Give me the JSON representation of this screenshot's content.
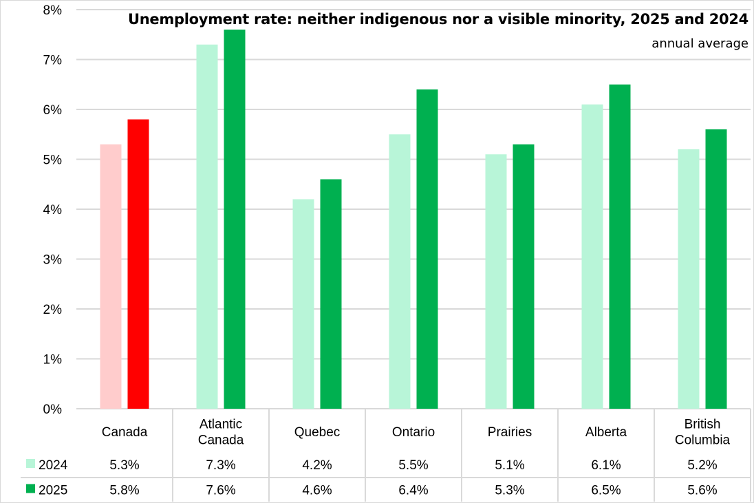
{
  "chart_data": {
    "type": "bar",
    "title": "Unemployment rate: neither indigenous nor a visible minority, 2025 and 2024",
    "subtitle": "annual average",
    "categories": [
      [
        "Canada"
      ],
      [
        "Atlantic",
        "Canada"
      ],
      [
        "Quebec"
      ],
      [
        "Ontario"
      ],
      [
        "Prairies"
      ],
      [
        "Alberta"
      ],
      [
        "British",
        "Columbia"
      ]
    ],
    "series": [
      {
        "name": "2024",
        "values": [
          5.3,
          7.3,
          4.2,
          5.5,
          5.1,
          6.1,
          5.2
        ],
        "labels": [
          "5.3%",
          "7.3%",
          "4.2%",
          "5.5%",
          "5.1%",
          "6.1%",
          "5.2%"
        ],
        "color": "#b8f5d8",
        "highlight_color": "#ffcccc"
      },
      {
        "name": "2025",
        "values": [
          5.8,
          7.6,
          4.6,
          6.4,
          5.3,
          6.5,
          5.6
        ],
        "labels": [
          "5.8%",
          "7.6%",
          "4.6%",
          "6.4%",
          "5.3%",
          "6.5%",
          "5.6%"
        ],
        "color": "#00b050",
        "highlight_color": "#ff0000"
      }
    ],
    "highlight_category_index": 0,
    "yticks": [
      "0%",
      "1%",
      "2%",
      "3%",
      "4%",
      "5%",
      "6%",
      "7%",
      "8%"
    ],
    "ylim": [
      0,
      8
    ],
    "ylabel": "",
    "xlabel": "",
    "grid": true,
    "legend": "data-table"
  }
}
